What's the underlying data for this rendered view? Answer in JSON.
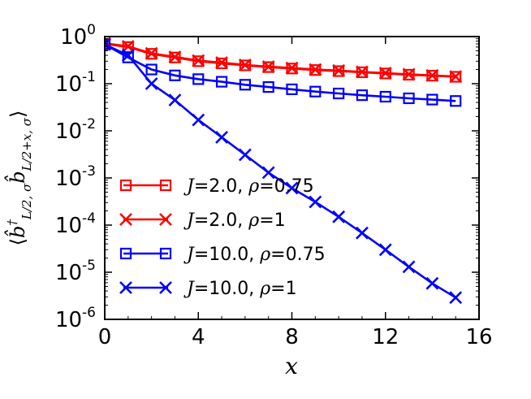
{
  "chart_data": {
    "type": "line",
    "xlabel": "x",
    "ylabel": {
      "open": "⟨",
      "b": "b̂",
      "dag": "†",
      "sub1": "L/2, σ",
      "b2": "b̂",
      "sub2": "L/2+x, σ",
      "close": "⟩"
    },
    "xlim": [
      0,
      16
    ],
    "ylim_log10": [
      -6,
      0
    ],
    "yscale": "log",
    "xticks": [
      0,
      4,
      8,
      12,
      16
    ],
    "yticks": [
      {
        "exp": 0,
        "label": "10",
        "sup": "0"
      },
      {
        "exp": -1,
        "label": "10",
        "sup": "-1"
      },
      {
        "exp": -2,
        "label": "10",
        "sup": "-2"
      },
      {
        "exp": -3,
        "label": "10",
        "sup": "-3"
      },
      {
        "exp": -4,
        "label": "10",
        "sup": "-4"
      },
      {
        "exp": -5,
        "label": "10",
        "sup": "-5"
      },
      {
        "exp": -6,
        "label": "10",
        "sup": "-6"
      }
    ],
    "x": [
      0,
      1,
      2,
      3,
      4,
      5,
      6,
      7,
      8,
      9,
      10,
      11,
      12,
      13,
      14,
      15
    ],
    "series": [
      {
        "key": "j2_rho075",
        "legend": {
          "J": "J",
          "eq1": "=2.0, ",
          "rho": "ρ",
          "eq2": "=0.75"
        },
        "color": "#ff0000",
        "marker": "square",
        "values": [
          0.7,
          0.6,
          0.43,
          0.36,
          0.3,
          0.27,
          0.245,
          0.225,
          0.21,
          0.195,
          0.185,
          0.175,
          0.165,
          0.155,
          0.148,
          0.14
        ]
      },
      {
        "key": "j2_rho1",
        "legend": {
          "J": "J",
          "eq1": "=2.0, ",
          "rho": "ρ",
          "eq2": "=1"
        },
        "color": "#ff0000",
        "marker": "x",
        "values": [
          0.72,
          0.62,
          0.44,
          0.37,
          0.31,
          0.28,
          0.25,
          0.23,
          0.215,
          0.2,
          0.19,
          0.178,
          0.168,
          0.158,
          0.15,
          0.142
        ]
      },
      {
        "key": "j10_rho075",
        "legend": {
          "J": "J",
          "eq1": "=10.0, ",
          "rho": "ρ",
          "eq2": "=0.75"
        },
        "color": "#0000ff",
        "marker": "square",
        "values": [
          0.68,
          0.36,
          0.2,
          0.15,
          0.125,
          0.11,
          0.095,
          0.085,
          0.076,
          0.068,
          0.062,
          0.057,
          0.053,
          0.049,
          0.046,
          0.043
        ]
      },
      {
        "key": "j10_rho1",
        "legend": {
          "J": "J",
          "eq1": "=10.0, ",
          "rho": "ρ",
          "eq2": "=1"
        },
        "color": "#0000ff",
        "marker": "x",
        "values": [
          0.68,
          0.4,
          0.1,
          0.045,
          0.017,
          0.0073,
          0.0031,
          0.0013,
          0.00061,
          0.00031,
          0.00015,
          6.8e-05,
          3e-05,
          1.3e-05,
          5.8e-06,
          2.9e-06
        ]
      }
    ],
    "legend_position": "lower-left",
    "grid": false
  }
}
